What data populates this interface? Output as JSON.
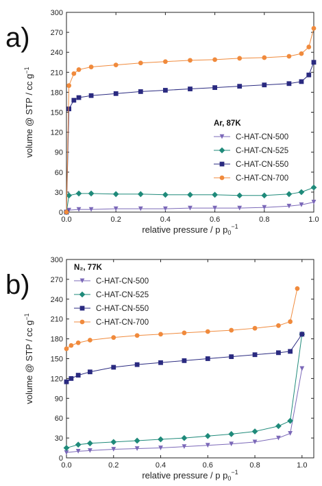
{
  "colors": {
    "C-HAT-CN-500": "#7b68b8",
    "C-HAT-CN-525": "#1f8a7a",
    "C-HAT-CN-550": "#2a2a80",
    "C-HAT-CN-700": "#f08a3c"
  },
  "chart_data": [
    {
      "panel_label": "a)",
      "type": "scatter",
      "legend_title": "Ar, 87K",
      "legend_position": "right",
      "xlabel": "relative pressure / p p",
      "xlabel_sub": "0",
      "xlabel_sup": "−1",
      "ylabel": "volume @ STP / cc g",
      "ylabel_sup": "−1",
      "xlim": [
        0,
        1
      ],
      "ylim": [
        0,
        300
      ],
      "xticks": [
        0.0,
        0.2,
        0.4,
        0.6,
        0.8,
        1.0
      ],
      "xtick_labels": [
        "0.0",
        "0.2",
        "0.4",
        "0.6",
        "0.8",
        "1.0"
      ],
      "yticks": [
        0,
        30,
        60,
        90,
        120,
        150,
        180,
        210,
        240,
        270,
        300
      ],
      "series": [
        {
          "name": "C-HAT-CN-500",
          "marker": "triangle-down",
          "x": [
            0.0,
            0.01,
            0.05,
            0.1,
            0.2,
            0.3,
            0.4,
            0.5,
            0.6,
            0.7,
            0.8,
            0.9,
            0.95,
            1.0
          ],
          "y": [
            0,
            3,
            4,
            4,
            5,
            5,
            5,
            6,
            6,
            6,
            7,
            9,
            11,
            15
          ]
        },
        {
          "name": "C-HAT-CN-525",
          "marker": "diamond",
          "x": [
            0.0,
            0.01,
            0.05,
            0.1,
            0.2,
            0.3,
            0.4,
            0.5,
            0.6,
            0.7,
            0.8,
            0.9,
            0.95,
            1.0
          ],
          "y": [
            0,
            25,
            28,
            28,
            27,
            27,
            26,
            26,
            26,
            25,
            25,
            27,
            30,
            37
          ]
        },
        {
          "name": "C-HAT-CN-550",
          "marker": "square",
          "x": [
            0.0,
            0.01,
            0.03,
            0.05,
            0.1,
            0.2,
            0.3,
            0.4,
            0.5,
            0.6,
            0.7,
            0.8,
            0.9,
            0.95,
            0.98,
            1.0
          ],
          "y": [
            0,
            155,
            168,
            172,
            175,
            178,
            181,
            183,
            185,
            187,
            189,
            191,
            193,
            196,
            206,
            225
          ]
        },
        {
          "name": "C-HAT-CN-700",
          "marker": "circle",
          "x": [
            0.0,
            0.01,
            0.03,
            0.05,
            0.1,
            0.2,
            0.3,
            0.4,
            0.5,
            0.6,
            0.7,
            0.8,
            0.9,
            0.95,
            0.98,
            1.0
          ],
          "y": [
            0,
            190,
            208,
            214,
            218,
            221,
            224,
            226,
            228,
            229,
            231,
            232,
            234,
            238,
            248,
            276
          ]
        }
      ]
    },
    {
      "panel_label": "b)",
      "type": "scatter",
      "legend_title": "N₂, 77K",
      "legend_position": "top-left",
      "xlabel": "relative pressure / p p",
      "xlabel_sub": "0",
      "xlabel_sup": "−1",
      "ylabel": "volume @ STP / cc g",
      "ylabel_sup": "−1",
      "xlim": [
        0,
        1.05
      ],
      "ylim": [
        0,
        300
      ],
      "xticks": [
        0.0,
        0.2,
        0.4,
        0.6,
        0.8,
        1.0
      ],
      "xtick_labels": [
        "0.0",
        "0.2",
        "0.4",
        "0.6",
        "0.8",
        "1.0"
      ],
      "yticks": [
        0,
        30,
        60,
        90,
        120,
        150,
        180,
        210,
        240,
        270,
        300
      ],
      "series": [
        {
          "name": "C-HAT-CN-500",
          "marker": "triangle-down",
          "x": [
            0.0,
            0.05,
            0.1,
            0.2,
            0.3,
            0.4,
            0.5,
            0.6,
            0.7,
            0.8,
            0.9,
            0.95,
            1.0
          ],
          "y": [
            8,
            10,
            11,
            13,
            14,
            15,
            17,
            19,
            21,
            24,
            30,
            37,
            135
          ]
        },
        {
          "name": "C-HAT-CN-525",
          "marker": "diamond",
          "x": [
            0.0,
            0.05,
            0.1,
            0.2,
            0.3,
            0.4,
            0.5,
            0.6,
            0.7,
            0.8,
            0.9,
            0.95,
            1.0
          ],
          "y": [
            15,
            20,
            22,
            24,
            26,
            28,
            30,
            33,
            36,
            40,
            48,
            56,
            187
          ]
        },
        {
          "name": "C-HAT-CN-550",
          "marker": "square",
          "x": [
            0.0,
            0.02,
            0.05,
            0.1,
            0.2,
            0.3,
            0.4,
            0.5,
            0.6,
            0.7,
            0.8,
            0.9,
            0.95,
            1.0
          ],
          "y": [
            115,
            120,
            125,
            130,
            137,
            141,
            144,
            147,
            150,
            153,
            156,
            159,
            161,
            187
          ]
        },
        {
          "name": "C-HAT-CN-700",
          "marker": "circle",
          "x": [
            0.0,
            0.02,
            0.05,
            0.1,
            0.2,
            0.3,
            0.4,
            0.5,
            0.6,
            0.7,
            0.8,
            0.9,
            0.95,
            0.98
          ],
          "y": [
            165,
            170,
            174,
            178,
            182,
            185,
            187,
            189,
            191,
            193,
            196,
            200,
            206,
            256
          ]
        }
      ]
    }
  ]
}
